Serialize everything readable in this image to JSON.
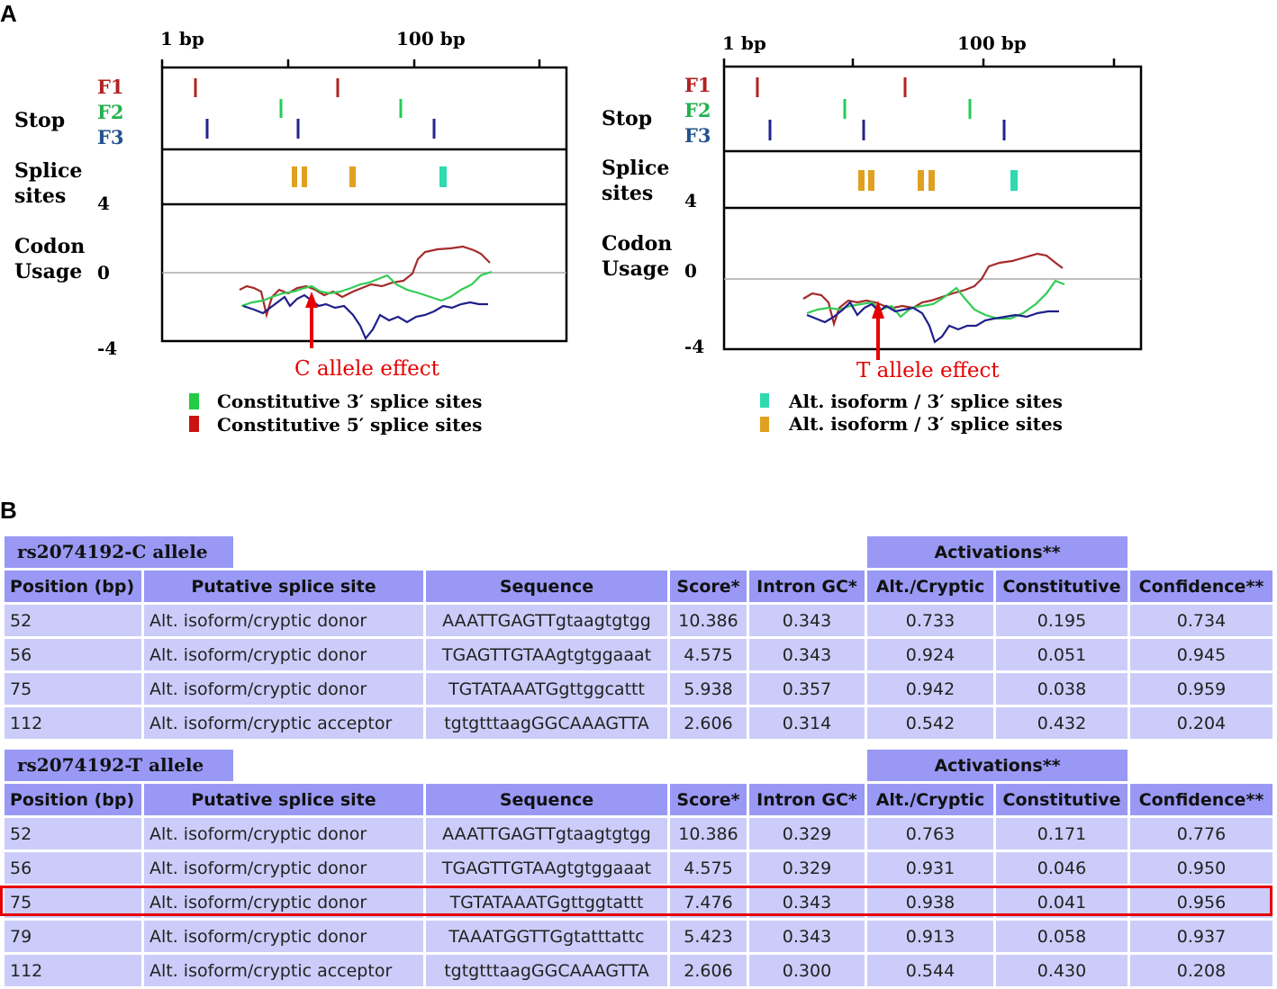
{
  "panel_labels": {
    "a": "A",
    "b": "B"
  },
  "left_chart": {
    "axis_labels": {
      "start": "1 bp",
      "mid": "100 bp"
    },
    "track_labels": {
      "stop": "Stop",
      "splice_line1": "Splice",
      "splice_line2": "sites",
      "codon_line1": "Codon",
      "codon_line2": "Usage"
    },
    "frame_labels": [
      "F1",
      "F2",
      "F3"
    ],
    "y_ticks": [
      "4",
      "0",
      "-4"
    ],
    "annotation": "C allele effect",
    "legend": [
      "Constitutive 3′ splice sites",
      "Constitutive 5′ splice sites"
    ]
  },
  "right_chart": {
    "axis_labels": {
      "start": "1 bp",
      "mid": "100 bp"
    },
    "track_labels": {
      "stop": "Stop",
      "splice_line1": "Splice",
      "splice_line2": "sites",
      "codon_line1": "Codon",
      "codon_line2": "Usage"
    },
    "frame_labels": [
      "F1",
      "F2",
      "F3"
    ],
    "y_ticks": [
      "4",
      "0",
      "-4"
    ],
    "annotation": "T allele effect",
    "legend": [
      "Alt. isoform / 3′ splice sites",
      "Alt. isoform / 3′ splice sites"
    ]
  },
  "colors": {
    "F1": "#b22222",
    "F2": "#22b24c",
    "F3": "#23238e",
    "donor_site": "#e0a020",
    "acceptor_site": "#30d9b0",
    "legend_green": "#22cc44",
    "legend_red": "#cc1111",
    "highlight": "#e60000"
  },
  "table_c": {
    "allele": "rs2074192-C allele",
    "activations_header": "Activations**",
    "columns": [
      "Position (bp)",
      "Putative splice site",
      "Sequence",
      "Score*",
      "Intron GC*",
      "Alt./Cryptic",
      "Constitutive",
      "Confidence**"
    ],
    "rows": [
      [
        "52",
        "Alt. isoform/cryptic donor",
        "AAATTGAGTTgtaagtgtgg",
        "10.386",
        "0.343",
        "0.733",
        "0.195",
        "0.734"
      ],
      [
        "56",
        "Alt. isoform/cryptic donor",
        "TGAGTTGTAAgtgtggaaat",
        "4.575",
        "0.343",
        "0.924",
        "0.051",
        "0.945"
      ],
      [
        "75",
        "Alt. isoform/cryptic donor",
        "TGTATAAATGgttggcattt",
        "5.938",
        "0.357",
        "0.942",
        "0.038",
        "0.959"
      ],
      [
        "112",
        "Alt. isoform/cryptic acceptor",
        "tgtgtttaagGGCAAAGTTA",
        "2.606",
        "0.314",
        "0.542",
        "0.432",
        "0.204"
      ]
    ]
  },
  "table_t": {
    "allele": "rs2074192-T allele",
    "activations_header": "Activations**",
    "columns": [
      "Position (bp)",
      "Putative splice site",
      "Sequence",
      "Score*",
      "Intron GC*",
      "Alt./Cryptic",
      "Constitutive",
      "Confidence**"
    ],
    "rows": [
      [
        "52",
        "Alt. isoform/cryptic donor",
        "AAATTGAGTTgtaagtgtgg",
        "10.386",
        "0.329",
        "0.763",
        "0.171",
        "0.776"
      ],
      [
        "56",
        "Alt. isoform/cryptic donor",
        "TGAGTTGTAAgtgtggaaat",
        "4.575",
        "0.329",
        "0.931",
        "0.046",
        "0.950"
      ],
      [
        "75",
        "Alt. isoform/cryptic donor",
        "TGTATAAATGgttggtattt",
        "7.476",
        "0.343",
        "0.938",
        "0.041",
        "0.956"
      ],
      [
        "79",
        "Alt. isoform/cryptic donor",
        "TAAATGGTTGgtatttattc",
        "5.423",
        "0.343",
        "0.913",
        "0.058",
        "0.937"
      ],
      [
        "112",
        "Alt. isoform/cryptic acceptor",
        "tgtgtttaagGGCAAAGTTA",
        "2.606",
        "0.300",
        "0.544",
        "0.430",
        "0.208"
      ]
    ]
  }
}
